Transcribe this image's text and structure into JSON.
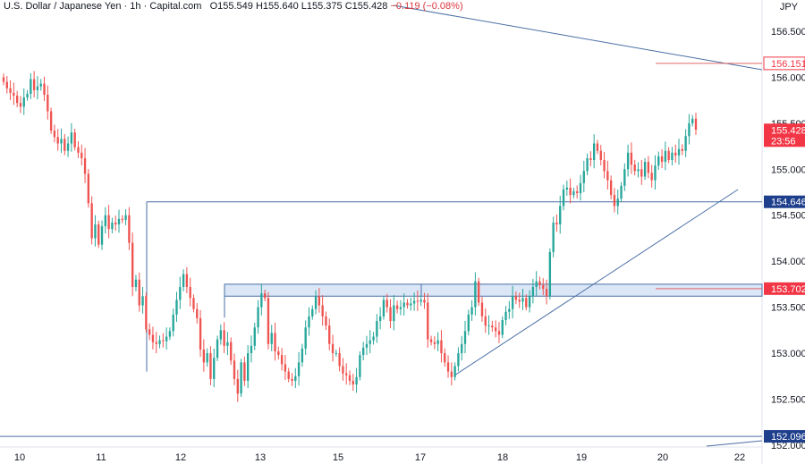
{
  "header": {
    "symbol": "U.S. Dollar / Japanese Yen",
    "interval": "1h",
    "source": "Capital.com",
    "open_label": "O",
    "open": "155.549",
    "high_label": "H",
    "high": "155.640",
    "low_label": "L",
    "low": "155.375",
    "close_label": "C",
    "close": "155.428",
    "change": "−0.119 (−0.08%)"
  },
  "currency": "JPY",
  "colors": {
    "up": "#26a69a",
    "down": "#ef5350",
    "line": "#4a6fa5",
    "zone_fill": "#dbe6f7",
    "price_tag_red": "#f23645",
    "price_tag_blue": "#1e3f8c"
  },
  "chart_data": {
    "type": "candlestick",
    "y_ticks": [
      "156.500",
      "156.000",
      "155.500",
      "155.000",
      "154.500",
      "154.000",
      "153.500",
      "153.000",
      "152.500",
      "152.000"
    ],
    "y_range": [
      151.98,
      156.84
    ],
    "x_ticks": [
      "10",
      "11",
      "12",
      "13",
      "15",
      "17",
      "18",
      "19",
      "20",
      "22"
    ],
    "price_labels": [
      {
        "value": "156.151",
        "price": 156.151,
        "style": "red-outline"
      },
      {
        "value": "155.428",
        "price": 155.428,
        "style": "red-filled",
        "countdown": "23:56"
      },
      {
        "value": "154.646",
        "price": 154.646,
        "style": "blue-filled"
      },
      {
        "value": "153.702",
        "price": 153.702,
        "style": "red-filled"
      },
      {
        "value": "152.096",
        "price": 152.096,
        "style": "blue-filled"
      }
    ],
    "horizontal_lines": [
      154.646,
      152.096
    ],
    "resistance_zone": [
      153.62,
      153.75
    ],
    "closes": [
      155.95,
      155.88,
      155.83,
      155.8,
      155.72,
      155.68,
      155.78,
      155.82,
      155.98,
      155.86,
      155.9,
      155.93,
      155.81,
      155.63,
      155.42,
      155.35,
      155.28,
      155.33,
      155.2,
      155.28,
      155.4,
      155.24,
      155.18,
      155.12,
      154.95,
      154.63,
      154.25,
      154.4,
      154.18,
      154.38,
      154.5,
      154.35,
      154.42,
      154.4,
      154.46,
      154.45,
      154.5,
      154.2,
      153.72,
      153.8,
      153.52,
      153.62,
      153.26,
      153.2,
      153.12,
      153.1,
      153.14,
      153.13,
      153.18,
      153.24,
      153.42,
      153.58,
      153.72,
      153.86,
      153.72,
      153.6,
      153.48,
      153.38,
      153.04,
      152.9,
      153.0,
      152.72,
      152.95,
      153.15,
      153.25,
      153.08,
      153.12,
      152.92,
      152.72,
      152.56,
      152.9,
      152.7,
      153.0,
      153.08,
      153.28,
      153.5,
      153.65,
      153.6,
      153.1,
      153.22,
      153.02,
      152.98,
      152.88,
      152.8,
      152.72,
      152.7,
      152.75,
      152.9,
      153.05,
      153.28,
      153.4,
      153.48,
      153.62,
      153.52,
      153.4,
      153.3,
      153.1,
      153.0,
      153.0,
      152.86,
      152.78,
      152.76,
      152.7,
      152.66,
      152.74,
      152.98,
      153.06,
      153.1,
      153.14,
      153.18,
      153.35,
      153.4,
      153.58,
      153.5,
      153.35,
      153.52,
      153.48,
      153.5,
      153.55,
      153.52,
      153.54,
      153.57,
      153.56,
      153.58,
      153.55,
      153.15,
      153.12,
      153.1,
      153.14,
      153.0,
      152.9,
      152.8,
      152.74,
      152.86,
      153.0,
      153.1,
      153.24,
      153.42,
      153.5,
      153.78,
      153.55,
      153.4,
      153.3,
      153.3,
      153.28,
      153.24,
      153.2,
      153.36,
      153.45,
      153.48,
      153.62,
      153.58,
      153.56,
      153.6,
      153.5,
      153.62,
      153.72,
      153.78,
      153.74,
      153.7,
      153.62,
      154.1,
      154.42,
      154.4,
      154.6,
      154.78,
      154.8,
      154.72,
      154.76,
      154.74,
      154.85,
      154.98,
      155.12,
      155.1,
      155.28,
      155.2,
      155.1,
      154.98,
      154.88,
      154.72,
      154.6,
      154.68,
      154.82,
      155.0,
      155.18,
      155.05,
      154.98,
      155.0,
      154.92,
      155.08,
      154.96,
      154.88,
      155.04,
      155.14,
      155.08,
      155.2,
      155.1,
      155.18,
      155.15,
      155.22,
      155.2,
      155.36,
      155.5,
      155.55,
      155.43
    ]
  }
}
